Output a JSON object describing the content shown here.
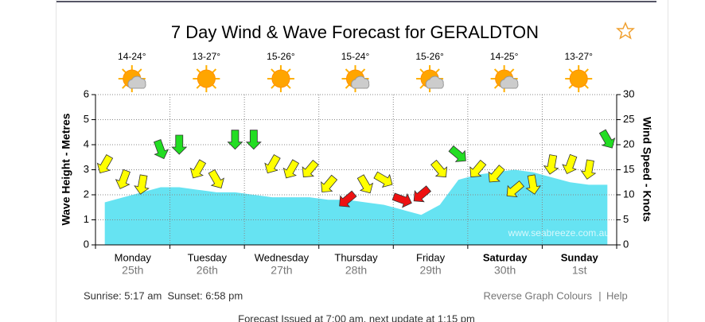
{
  "chart_data": {
    "type": "wind-wave",
    "title": "7 Day Wind & Wave Forecast for GERALDTON",
    "y_label": "Wave Height - Metres",
    "y2_label": "Wind Speed - Knots",
    "watermark": "www.seabreeze.com.au",
    "ylim": [
      0,
      6
    ],
    "yticks": [
      0,
      1,
      2,
      3,
      4,
      5,
      6
    ],
    "y2lim": [
      0,
      30
    ],
    "y2ticks": [
      0,
      5,
      10,
      15,
      20,
      25,
      30
    ],
    "grid": true,
    "days": [
      {
        "name": "Monday",
        "date": "25th",
        "temps": "14-24°",
        "sky": "partly-cloudy"
      },
      {
        "name": "Tuesday",
        "date": "26th",
        "temps": "13-27°",
        "sky": "sunny"
      },
      {
        "name": "Wednesday",
        "date": "27th",
        "temps": "15-26°",
        "sky": "sunny"
      },
      {
        "name": "Thursday",
        "date": "28th",
        "temps": "15-24°",
        "sky": "partly-cloudy"
      },
      {
        "name": "Friday",
        "date": "29th",
        "temps": "15-26°",
        "sky": "partly-cloudy"
      },
      {
        "name": "Saturday",
        "date": "30th",
        "temps": "14-25°",
        "sky": "partly-cloudy",
        "bold": true
      },
      {
        "name": "Sunday",
        "date": "1st",
        "temps": "13-27°",
        "sky": "sunny",
        "bold": true
      }
    ],
    "series": [
      {
        "color": "#66e3f2",
        "values": [
          1.7,
          1.9,
          2.1,
          2.3,
          2.3,
          2.2,
          2.1,
          2.1,
          2.0,
          1.9,
          1.9,
          1.9,
          1.8,
          1.8,
          1.7,
          1.6,
          1.4,
          1.2,
          1.6,
          2.6,
          2.8,
          2.9,
          3.0,
          2.9,
          2.7,
          2.5,
          2.4,
          2.4
        ]
      },
      {
        "axis": "y2",
        "values": [
          16,
          13,
          12,
          19,
          20,
          15,
          13,
          21,
          21,
          16,
          15,
          15,
          12,
          9,
          12,
          13,
          9,
          10,
          15,
          18,
          15,
          14,
          11,
          12,
          16,
          16,
          15,
          21
        ],
        "directions": [
          120,
          110,
          100,
          70,
          90,
          120,
          60,
          90,
          90,
          120,
          120,
          130,
          130,
          140,
          60,
          30,
          20,
          140,
          50,
          40,
          130,
          130,
          140,
          80,
          100,
          110,
          100,
          60
        ],
        "colors": [
          "#ffff00",
          "#ffff00",
          "#ffff00",
          "#22dd22",
          "#22dd22",
          "#ffff00",
          "#ffff00",
          "#22dd22",
          "#22dd22",
          "#ffff00",
          "#ffff00",
          "#ffff00",
          "#ffff00",
          "#ee1111",
          "#ffff00",
          "#ffff00",
          "#ee1111",
          "#ee1111",
          "#ffff00",
          "#22dd22",
          "#ffff00",
          "#ffff00",
          "#ffff00",
          "#ffff00",
          "#ffff00",
          "#ffff00",
          "#ffff00",
          "#22dd22"
        ]
      }
    ]
  },
  "footer": {
    "sun": "Sunrise: 5:17 am  Sunset: 6:58 pm",
    "links": [
      "Reverse Graph Colours",
      "Help"
    ],
    "separator": "|",
    "issued": "Forecast Issued at 7:00 am, next update at 1:15 pm"
  }
}
